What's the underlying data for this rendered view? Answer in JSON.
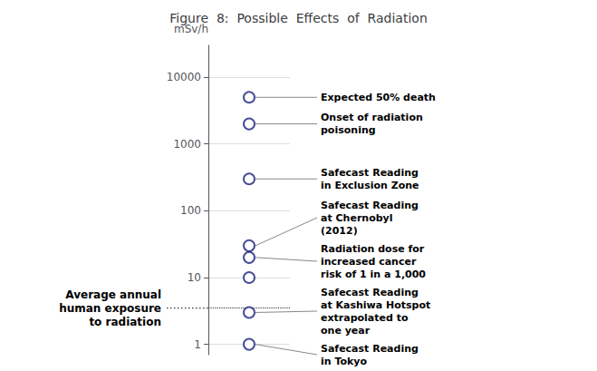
{
  "chart_data": {
    "type": "scatter",
    "title": "Figure  8:  Possible  Effects  of  Radiation",
    "ylabel": "mSv/h",
    "values": [
      5000,
      2000,
      300,
      30,
      20,
      10,
      3,
      1
    ],
    "color": "#1a237e",
    "marker": "circle",
    "log": "y",
    "ylim": [
      0.7,
      30000
    ],
    "yticks": [
      1,
      10,
      100,
      1000,
      10000
    ],
    "grid": true,
    "tick_labels": "y",
    "reference_line": {
      "value": 3.5,
      "label": "Average annual\nhuman exposure\nto radiation",
      "line_style": "dotted"
    },
    "annotations": [
      {
        "text": "Expected 50% death",
        "y": 5000
      },
      {
        "text": "Onset of radiation\npoisoning",
        "y": 2000
      },
      {
        "text": "Safecast Reading\nin Exclusion Zone",
        "y": 300
      },
      {
        "text": "Safecast Reading\nat Chernobyl\n(2012)",
        "y": 30
      },
      {
        "text": "Radiation dose for\nincreased cancer\nrisk of 1 in a 1,000",
        "y": 20
      },
      {
        "text": "Safecast Reading\nat Kashiwa Hotspot\nextrapolated to\none year",
        "y": 3
      },
      {
        "text": "Safecast Reading\nin Tokyo",
        "y": 1
      }
    ]
  }
}
